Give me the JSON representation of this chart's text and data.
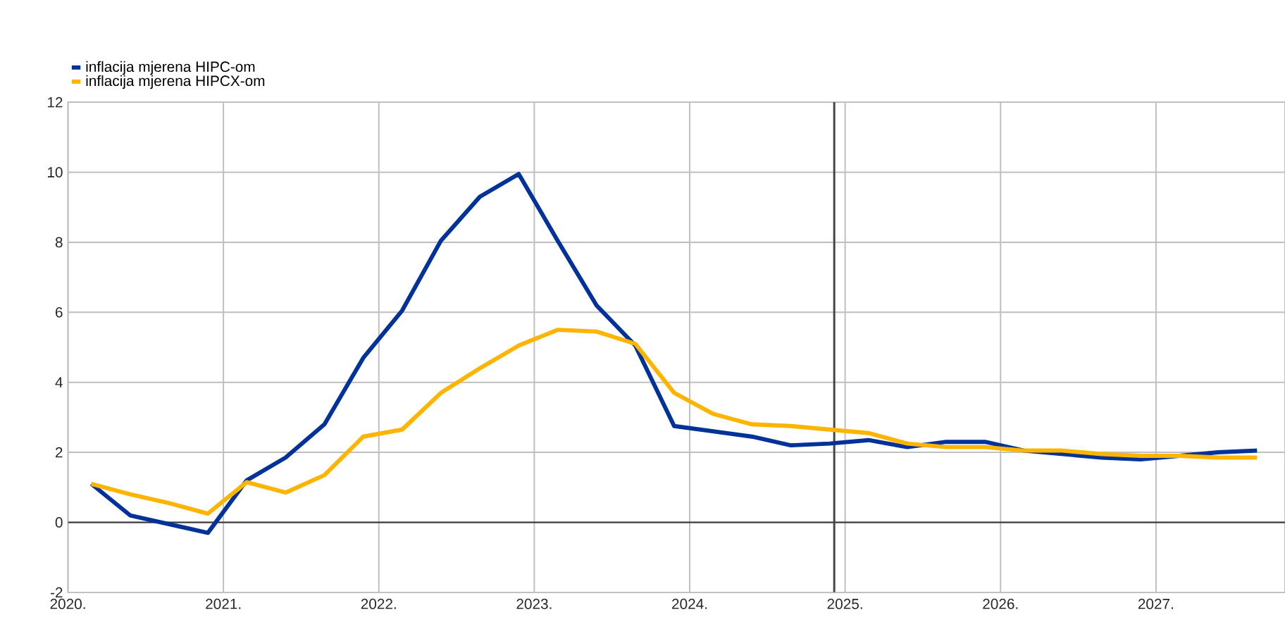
{
  "chart_data": {
    "type": "line",
    "x": [
      2020.15,
      2020.4,
      2020.65,
      2020.9,
      2021.15,
      2021.4,
      2021.65,
      2021.9,
      2022.15,
      2022.4,
      2022.65,
      2022.9,
      2023.15,
      2023.4,
      2023.65,
      2023.9,
      2024.15,
      2024.4,
      2024.65,
      2024.9,
      2025.15,
      2025.4,
      2025.65,
      2025.9,
      2026.15,
      2026.4,
      2026.65,
      2026.9,
      2027.15,
      2027.4,
      2027.65
    ],
    "series": [
      {
        "name": "inflacija mjerena HIPC-om",
        "color": "#003299",
        "values": [
          1.1,
          0.2,
          -0.05,
          -0.3,
          1.2,
          1.85,
          2.8,
          4.7,
          6.05,
          8.05,
          9.3,
          9.95,
          8.05,
          6.2,
          5.05,
          2.75,
          2.6,
          2.45,
          2.2,
          2.25,
          2.35,
          2.15,
          2.3,
          2.3,
          2.05,
          1.95,
          1.85,
          1.8,
          1.9,
          2.0,
          2.05
        ]
      },
      {
        "name": "inflacija mjerena HIPCX-om",
        "color": "#ffb400",
        "values": [
          1.1,
          0.8,
          0.55,
          0.25,
          1.15,
          0.85,
          1.35,
          2.45,
          2.65,
          3.7,
          4.4,
          5.05,
          5.5,
          5.45,
          5.1,
          3.7,
          3.1,
          2.8,
          2.75,
          2.65,
          2.55,
          2.25,
          2.15,
          2.15,
          2.05,
          2.05,
          1.95,
          1.9,
          1.9,
          1.85,
          1.85
        ]
      }
    ],
    "xlim": [
      2020,
      2027.83
    ],
    "xticks": [
      {
        "value": 2020,
        "label": "2020."
      },
      {
        "value": 2021,
        "label": "2021."
      },
      {
        "value": 2022,
        "label": "2022."
      },
      {
        "value": 2023,
        "label": "2023."
      },
      {
        "value": 2024,
        "label": "2024."
      },
      {
        "value": 2025,
        "label": "2025."
      },
      {
        "value": 2026,
        "label": "2026."
      },
      {
        "value": 2027,
        "label": "2027."
      }
    ],
    "ylim": [
      -2,
      12
    ],
    "yticks": [
      -2,
      0,
      2,
      4,
      6,
      8,
      10,
      12
    ],
    "ref_lines": [
      {
        "axis": "y",
        "value": 0,
        "color": "#333333"
      },
      {
        "axis": "x",
        "value": 2024.93,
        "color": "#444444"
      }
    ],
    "grid": true,
    "legend": "top left",
    "marker": "none",
    "line_style": "solid"
  }
}
